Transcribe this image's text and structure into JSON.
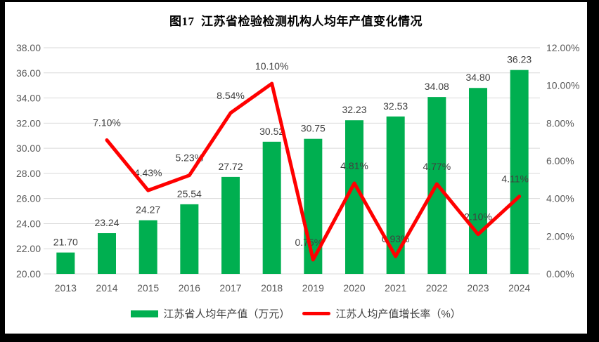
{
  "chart_data": {
    "type": "combo",
    "title": "图17  江苏省检验检测机构人均年产值变化情况",
    "categories": [
      "2013",
      "2014",
      "2015",
      "2016",
      "2017",
      "2018",
      "2019",
      "2020",
      "2021",
      "2022",
      "2023",
      "2024"
    ],
    "series": [
      {
        "name": "江苏省人均年产值（万元）",
        "type": "bar",
        "axis": "left",
        "color": "#00AF50",
        "values": [
          21.7,
          23.24,
          24.27,
          25.54,
          27.72,
          30.52,
          30.75,
          32.23,
          32.53,
          34.08,
          34.8,
          36.23
        ],
        "labels": [
          "21.70",
          "23.24",
          "24.27",
          "25.54",
          "27.72",
          "30.52",
          "30.75",
          "32.23",
          "32.53",
          "34.08",
          "34.80",
          "36.23"
        ]
      },
      {
        "name": "江苏人均产值增长率（%）",
        "type": "line",
        "axis": "right",
        "color": "#FF0000",
        "values": [
          null,
          7.1,
          4.43,
          5.23,
          8.54,
          10.1,
          0.75,
          4.81,
          0.93,
          4.77,
          2.1,
          4.11
        ],
        "labels": [
          "",
          "7.10%",
          "4.43%",
          "5.23%",
          "8.54%",
          "10.10%",
          "0.75%",
          "4.81%",
          "0.93%",
          "4.77%",
          "2.10%",
          "4.11%"
        ]
      }
    ],
    "left_axis": {
      "min": 20,
      "max": 38,
      "step": 2,
      "ticks": [
        "38.00",
        "36.00",
        "34.00",
        "32.00",
        "30.00",
        "28.00",
        "26.00",
        "24.00",
        "22.00",
        "20.00"
      ]
    },
    "right_axis": {
      "min": 0,
      "max": 12,
      "step": 2,
      "ticks": [
        "12.00%",
        "10.00%",
        "8.00%",
        "6.00%",
        "4.00%",
        "2.00%",
        "0.00%"
      ]
    },
    "grid": true,
    "legend_position": "bottom",
    "colors": {
      "gridline": "#D9D9D9",
      "axis_text": "#595959",
      "data_label_text": "#404040",
      "panel_background": "#FFFFFF",
      "frame_background": "#000000"
    }
  }
}
